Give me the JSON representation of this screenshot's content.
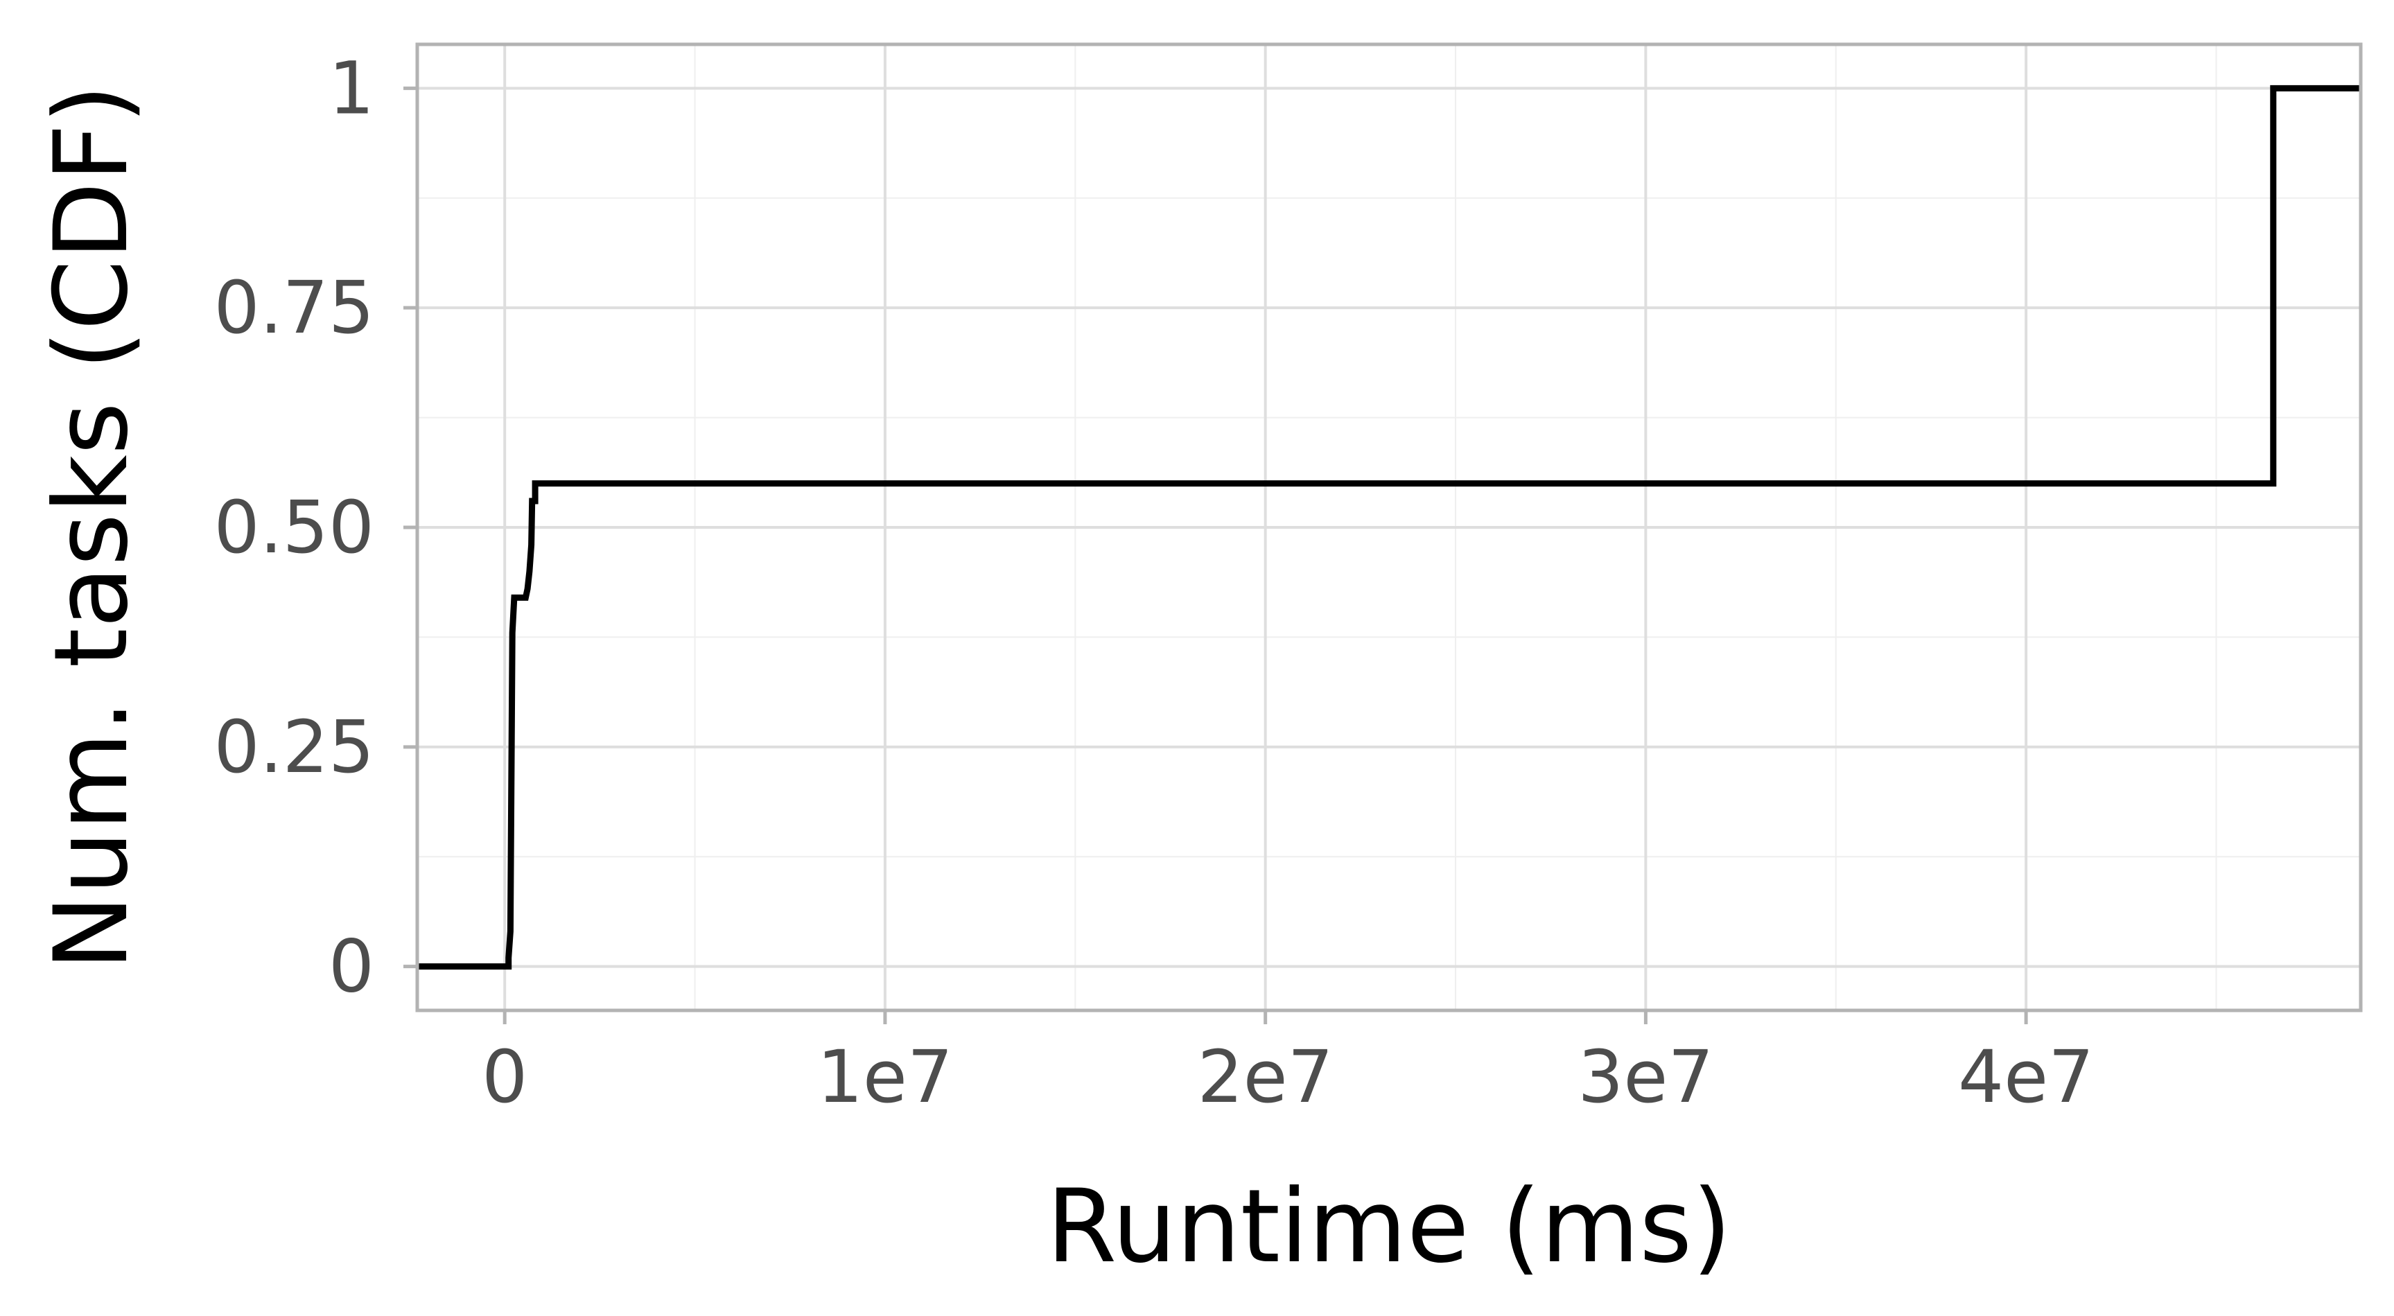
{
  "chart_data": {
    "type": "line",
    "step": true,
    "title": "",
    "xlabel": "Runtime (ms)",
    "ylabel": "Num. tasks (CDF)",
    "xlim": [
      -2300000,
      48800000
    ],
    "ylim": [
      -0.05,
      1.05
    ],
    "x_ticks": [
      {
        "value": 0,
        "label": "0"
      },
      {
        "value": 10000000,
        "label": "1e7"
      },
      {
        "value": 20000000,
        "label": "2e7"
      },
      {
        "value": 30000000,
        "label": "3e7"
      },
      {
        "value": 40000000,
        "label": "4e7"
      }
    ],
    "y_ticks": [
      {
        "value": 0,
        "label": "0"
      },
      {
        "value": 0.25,
        "label": "0.25"
      },
      {
        "value": 0.5,
        "label": "0.50"
      },
      {
        "value": 0.75,
        "label": "0.75"
      },
      {
        "value": 1,
        "label": "1"
      }
    ],
    "grid": true,
    "legend": "none",
    "line_color": "#000000",
    "series": [
      {
        "points": [
          [
            -2300000,
            0
          ],
          [
            100000,
            0
          ],
          [
            100000,
            0.01
          ],
          [
            150000,
            0.04
          ],
          [
            200000,
            0.38
          ],
          [
            250000,
            0.42
          ],
          [
            550000,
            0.42
          ],
          [
            600000,
            0.43
          ],
          [
            650000,
            0.45
          ],
          [
            700000,
            0.48
          ],
          [
            720000,
            0.53
          ],
          [
            800000,
            0.53
          ],
          [
            800000,
            0.55
          ],
          [
            46500000,
            0.55
          ],
          [
            46500000,
            1
          ],
          [
            48800000,
            1
          ]
        ]
      }
    ]
  }
}
